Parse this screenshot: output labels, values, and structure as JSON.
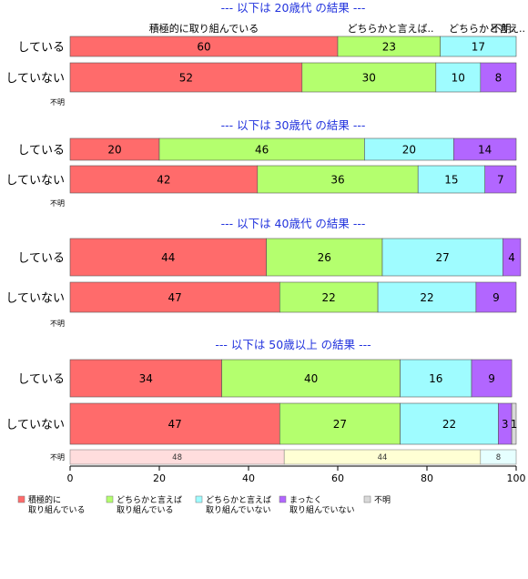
{
  "chart_data": {
    "type": "bar",
    "orientation": "horizontal",
    "stacked": true,
    "xlim": [
      0,
      100
    ],
    "x_ticks": [
      0,
      20,
      40,
      60,
      80,
      100
    ],
    "category_headers": [
      "積極的に取り組んでいる",
      "どちらかと言えば..",
      "どちらかと言え..",
      "不明."
    ],
    "series": [
      {
        "name": "積極的に\n取り組んでいる",
        "color": "#ff6b6b",
        "light_color": "#ffdddd"
      },
      {
        "name": "どちらかと言えば\n取り組んでいる",
        "color": "#b4ff6e",
        "light_color": "#ffffd4"
      },
      {
        "name": "どちらかと言えば\n取り組んでいない",
        "color": "#9ffcff",
        "light_color": "#e6ffff"
      },
      {
        "name": "まったく\n取り組んでいない",
        "color": "#b266ff",
        "light_color": "#eddcff"
      },
      {
        "name": "不明",
        "color": "#d9d9d9",
        "light_color": "#f0f0f0"
      }
    ],
    "groups": [
      {
        "title": "--- 以下は 20歳代 の結果 ---",
        "rows": [
          {
            "label": "している",
            "values": [
              60,
              23,
              17,
              0,
              0
            ]
          },
          {
            "label": "していない",
            "values": [
              52,
              30,
              10,
              8,
              0
            ]
          }
        ],
        "unknown": {
          "label": "不明",
          "values": []
        }
      },
      {
        "title": "--- 以下は 30歳代 の結果 ---",
        "rows": [
          {
            "label": "している",
            "values": [
              20,
              46,
              20,
              14,
              0
            ]
          },
          {
            "label": "していない",
            "values": [
              42,
              36,
              15,
              7,
              0
            ]
          }
        ],
        "unknown": {
          "label": "不明",
          "values": []
        }
      },
      {
        "title": "--- 以下は 40歳代 の結果 ---",
        "rows": [
          {
            "label": "している",
            "values": [
              44,
              26,
              27,
              4,
              0
            ]
          },
          {
            "label": "していない",
            "values": [
              47,
              22,
              22,
              9,
              0
            ]
          }
        ],
        "unknown": {
          "label": "不明",
          "values": []
        }
      },
      {
        "title": "--- 以下は 50歳以上 の結果 ---",
        "rows": [
          {
            "label": "している",
            "values": [
              34,
              40,
              16,
              9,
              0
            ]
          },
          {
            "label": "していない",
            "values": [
              47,
              27,
              22,
              3,
              1
            ]
          }
        ],
        "unknown": {
          "label": "不明",
          "values": [
            48,
            44,
            8,
            0,
            0
          ]
        }
      }
    ]
  }
}
